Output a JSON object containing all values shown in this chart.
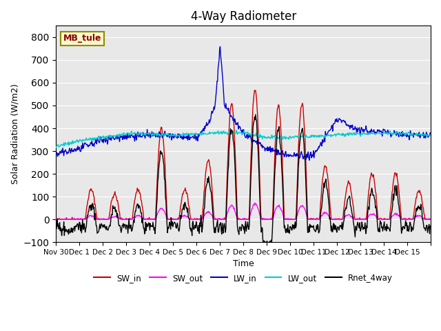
{
  "title": "4-Way Radiometer",
  "xlabel": "Time",
  "ylabel": "Solar Radiation (W/m2)",
  "ylim": [
    -100,
    850
  ],
  "yticks": [
    -100,
    0,
    100,
    200,
    300,
    400,
    500,
    600,
    700,
    800
  ],
  "annotation": "MB_tule",
  "annotation_color": "#8B0000",
  "annotation_bg": "#FFFACD",
  "annotation_border": "#8B8B00",
  "bg_color": "#E8E8E8",
  "legend_entries": [
    "SW_in",
    "SW_out",
    "LW_in",
    "LW_out",
    "Rnet_4way"
  ],
  "legend_colors": [
    "#CC0000",
    "#FF00FF",
    "#0000CC",
    "#00CCCC",
    "#000000"
  ],
  "line_colors": {
    "SW_in": "#CC0000",
    "SW_out": "#FF00FF",
    "LW_in": "#0000CC",
    "LW_out": "#00CCCC",
    "Rnet_4way": "#000000"
  },
  "xtick_positions": [
    0,
    1,
    2,
    3,
    4,
    5,
    6,
    7,
    8,
    9,
    10,
    11,
    12,
    13,
    14,
    15,
    16
  ],
  "xtick_labels": [
    "Nov 30",
    "Dec 1",
    "Dec 2",
    "Dec 3",
    "Dec 4",
    "Dec 5",
    "Dec 6",
    "Dec 7",
    "Dec 8",
    "Dec 9",
    "Dec 10",
    "Dec 11",
    "Dec 12",
    "Dec 13",
    "Dec 14",
    "Dec 15",
    ""
  ],
  "num_points": 720
}
